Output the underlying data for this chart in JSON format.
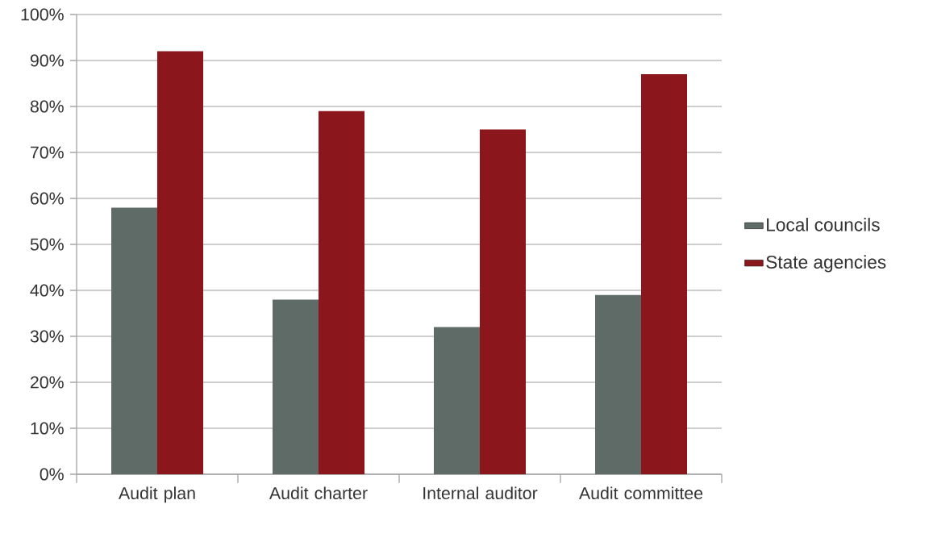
{
  "chart_data": {
    "type": "bar",
    "categories": [
      "Audit plan",
      "Audit charter",
      "Internal auditor",
      "Audit committee"
    ],
    "series": [
      {
        "name": "Local councils",
        "color": "#5f6b66",
        "values": [
          58,
          38,
          32,
          39
        ]
      },
      {
        "name": "State agencies",
        "color": "#8b161c",
        "values": [
          92,
          79,
          75,
          87
        ]
      }
    ],
    "ylim": [
      0,
      100
    ],
    "yticks": [
      {
        "value": 0,
        "label": "0%"
      },
      {
        "value": 10,
        "label": "10%"
      },
      {
        "value": 20,
        "label": "20%"
      },
      {
        "value": 30,
        "label": "30%"
      },
      {
        "value": 40,
        "label": "40%"
      },
      {
        "value": 50,
        "label": "50%"
      },
      {
        "value": 60,
        "label": "60%"
      },
      {
        "value": 70,
        "label": "70%"
      },
      {
        "value": 80,
        "label": "80%"
      },
      {
        "value": 90,
        "label": "90%"
      },
      {
        "value": 100,
        "label": "100%"
      }
    ],
    "grid": "y",
    "legend": "right"
  }
}
